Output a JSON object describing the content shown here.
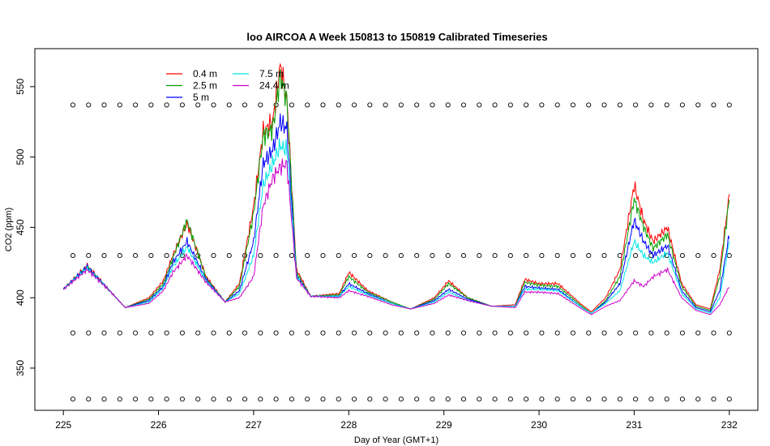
{
  "chart_data": {
    "type": "line",
    "title": "loo AIRCOA A  Week 150813 to 150819  Calibrated Timeseries",
    "xlabel": "Day of Year (GMT+1)",
    "ylabel": "CO2 (ppm)",
    "xlim": [
      224.7,
      232.3
    ],
    "ylim": [
      320,
      577
    ],
    "xticks": [
      "225",
      "226",
      "227",
      "228",
      "229",
      "230",
      "231",
      "232"
    ],
    "yticks": [
      "350",
      "400",
      "450",
      "500",
      "550"
    ],
    "grid": false,
    "legend_position": "top-left",
    "legend": [
      {
        "name": "0.4 m",
        "color": "#ff0000"
      },
      {
        "name": "2.5 m",
        "color": "#00a000"
      },
      {
        "name": "5 m",
        "color": "#0000ff"
      },
      {
        "name": "7.5 m",
        "color": "#00e5e5"
      },
      {
        "name": "24.4 m",
        "color": "#cc00cc"
      }
    ],
    "flag_rows": [
      537,
      430,
      375,
      328
    ],
    "flag_x_start": 225.1,
    "flag_x_end": 232.0,
    "flag_count": 43,
    "series": [
      {
        "name": "0.4 m",
        "color": "#ff0000",
        "x": [
          225.0,
          225.25,
          225.5,
          225.65,
          225.9,
          226.05,
          226.15,
          226.3,
          226.5,
          226.7,
          226.85,
          227.0,
          227.1,
          227.2,
          227.28,
          227.35,
          227.45,
          227.6,
          227.9,
          228.0,
          228.2,
          228.45,
          228.65,
          228.9,
          229.05,
          229.25,
          229.5,
          229.75,
          229.85,
          230.0,
          230.2,
          230.45,
          230.55,
          230.7,
          230.85,
          231.0,
          231.1,
          231.2,
          231.35,
          231.5,
          231.65,
          231.8,
          231.9,
          232.0
        ],
        "y": [
          406,
          423,
          404,
          393,
          400,
          412,
          430,
          453,
          415,
          397,
          410,
          465,
          518,
          525,
          565,
          540,
          420,
          401,
          403,
          418,
          405,
          397,
          392,
          400,
          412,
          400,
          394,
          395,
          413,
          410,
          410,
          395,
          390,
          400,
          420,
          480,
          455,
          440,
          450,
          410,
          395,
          392,
          420,
          473
        ]
      },
      {
        "name": "2.5 m",
        "color": "#00a000",
        "x": [
          225.0,
          225.25,
          225.5,
          225.65,
          225.9,
          226.05,
          226.15,
          226.3,
          226.5,
          226.7,
          226.85,
          227.0,
          227.1,
          227.2,
          227.28,
          227.35,
          227.45,
          227.6,
          227.9,
          228.0,
          228.2,
          228.45,
          228.65,
          228.9,
          229.05,
          229.25,
          229.5,
          229.75,
          229.85,
          230.0,
          230.2,
          230.45,
          230.55,
          230.7,
          230.85,
          231.0,
          231.1,
          231.2,
          231.35,
          231.5,
          231.65,
          231.8,
          231.9,
          232.0
        ],
        "y": [
          406,
          422,
          404,
          393,
          399,
          410,
          428,
          455,
          414,
          397,
          408,
          460,
          515,
          520,
          558,
          540,
          418,
          401,
          402,
          415,
          404,
          397,
          392,
          399,
          410,
          400,
          394,
          394,
          411,
          409,
          408,
          394,
          389,
          398,
          415,
          470,
          450,
          435,
          445,
          408,
          394,
          391,
          415,
          470
        ]
      },
      {
        "name": "5 m",
        "color": "#0000ff",
        "x": [
          225.0,
          225.25,
          225.5,
          225.65,
          225.9,
          226.05,
          226.15,
          226.3,
          226.5,
          226.7,
          226.85,
          227.0,
          227.1,
          227.2,
          227.28,
          227.35,
          227.45,
          227.6,
          227.9,
          228.0,
          228.2,
          228.45,
          228.65,
          228.9,
          229.05,
          229.25,
          229.5,
          229.75,
          229.85,
          230.0,
          230.2,
          230.45,
          230.55,
          230.7,
          230.85,
          231.0,
          231.1,
          231.2,
          231.35,
          231.5,
          231.65,
          231.8,
          231.9,
          232.0
        ],
        "y": [
          406,
          422,
          404,
          393,
          398,
          408,
          425,
          440,
          413,
          397,
          405,
          440,
          495,
          505,
          525,
          520,
          416,
          401,
          401,
          410,
          403,
          396,
          392,
          398,
          406,
          399,
          394,
          394,
          408,
          407,
          406,
          393,
          389,
          397,
          410,
          455,
          440,
          430,
          437,
          405,
          393,
          390,
          405,
          445
        ]
      },
      {
        "name": "7.5 m",
        "color": "#00e5e5",
        "x": [
          225.0,
          225.25,
          225.5,
          225.65,
          225.9,
          226.05,
          226.15,
          226.3,
          226.5,
          226.7,
          226.85,
          227.0,
          227.1,
          227.2,
          227.28,
          227.35,
          227.45,
          227.6,
          227.9,
          228.0,
          228.2,
          228.45,
          228.65,
          228.9,
          229.05,
          229.25,
          229.5,
          229.75,
          229.85,
          230.0,
          230.2,
          230.45,
          230.55,
          230.7,
          230.85,
          231.0,
          231.1,
          231.2,
          231.35,
          231.5,
          231.65,
          231.8,
          231.9,
          232.0
        ],
        "y": [
          406,
          421,
          404,
          393,
          397,
          407,
          422,
          436,
          412,
          397,
          403,
          430,
          480,
          495,
          508,
          505,
          415,
          401,
          401,
          408,
          402,
          396,
          392,
          397,
          404,
          398,
          394,
          394,
          406,
          406,
          405,
          393,
          389,
          396,
          405,
          440,
          430,
          425,
          432,
          403,
          392,
          389,
          400,
          440
        ]
      },
      {
        "name": "24.4 m",
        "color": "#cc00cc",
        "x": [
          225.0,
          225.25,
          225.5,
          225.65,
          225.9,
          226.05,
          226.15,
          226.3,
          226.5,
          226.7,
          226.85,
          227.0,
          227.1,
          227.2,
          227.28,
          227.35,
          227.45,
          227.6,
          227.9,
          228.0,
          228.2,
          228.45,
          228.65,
          228.9,
          229.05,
          229.25,
          229.5,
          229.75,
          229.85,
          230.0,
          230.2,
          230.45,
          230.55,
          230.7,
          230.85,
          231.0,
          231.1,
          231.2,
          231.35,
          231.5,
          231.65,
          231.8,
          231.9,
          232.0
        ],
        "y": [
          406,
          420,
          404,
          393,
          396,
          405,
          418,
          430,
          411,
          397,
          400,
          415,
          465,
          485,
          493,
          495,
          414,
          401,
          400,
          405,
          401,
          395,
          392,
          396,
          402,
          398,
          394,
          393,
          404,
          404,
          403,
          392,
          388,
          394,
          398,
          412,
          408,
          415,
          420,
          400,
          391,
          388,
          395,
          408
        ]
      }
    ]
  }
}
